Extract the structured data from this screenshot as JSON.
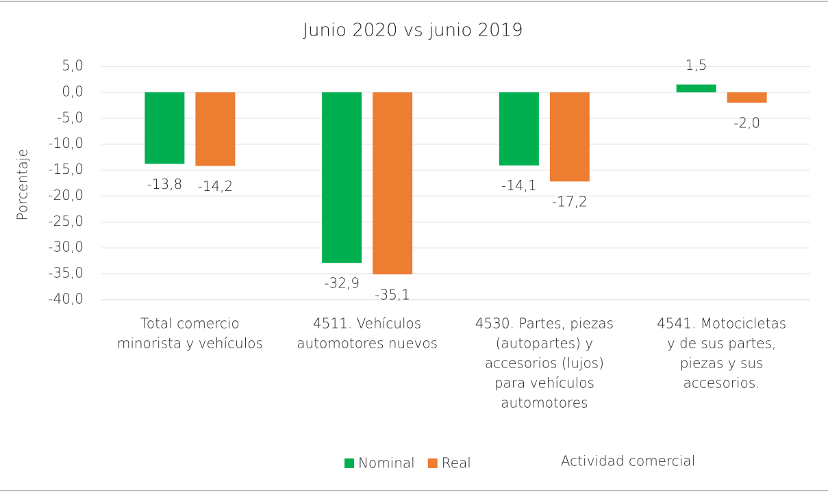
{
  "chart_data": {
    "type": "bar",
    "title": "Junio 2020 vs junio 2019",
    "y_label": "Porcentaje",
    "x_label": "Actividad comercial",
    "categories": [
      [
        "Total comercio",
        "minorista y vehículos"
      ],
      [
        "4511. Vehículos",
        "automotores nuevos"
      ],
      [
        "4530. Partes, piezas",
        "(autopartes) y",
        "accesorios (lujos)",
        "para vehículos",
        "automotores"
      ],
      [
        "4541.  Motocicletas",
        "y de sus partes,",
        "piezas y sus",
        "accesorios."
      ]
    ],
    "series": [
      {
        "name": "Nominal",
        "color": "#00b050",
        "values": [
          -13.8,
          -32.9,
          -14.1,
          1.5
        ],
        "value_labels": [
          "-13,8",
          "-32,9",
          "-14,1",
          "1,5"
        ]
      },
      {
        "name": "Real",
        "color": "#ed7d31",
        "values": [
          -14.2,
          -35.1,
          -17.2,
          -2.0
        ],
        "value_labels": [
          "-14,2",
          "-35,1",
          "-17,2",
          "-2,0"
        ]
      }
    ],
    "ylim": [
      -40,
      5
    ],
    "yticks": [
      {
        "value": 5,
        "label": "5,0"
      },
      {
        "value": 0,
        "label": "0,0"
      },
      {
        "value": -5,
        "label": "-5,0"
      },
      {
        "value": -10,
        "label": "-10,0"
      },
      {
        "value": -15,
        "label": "-15,0"
      },
      {
        "value": -20,
        "label": "-20,0"
      },
      {
        "value": -25,
        "label": "-25,0"
      },
      {
        "value": -30,
        "label": "-30,0"
      },
      {
        "value": -35,
        "label": "-35,0"
      },
      {
        "value": -40,
        "label": "-40,0"
      }
    ],
    "grid": true,
    "legend": "bottom"
  }
}
